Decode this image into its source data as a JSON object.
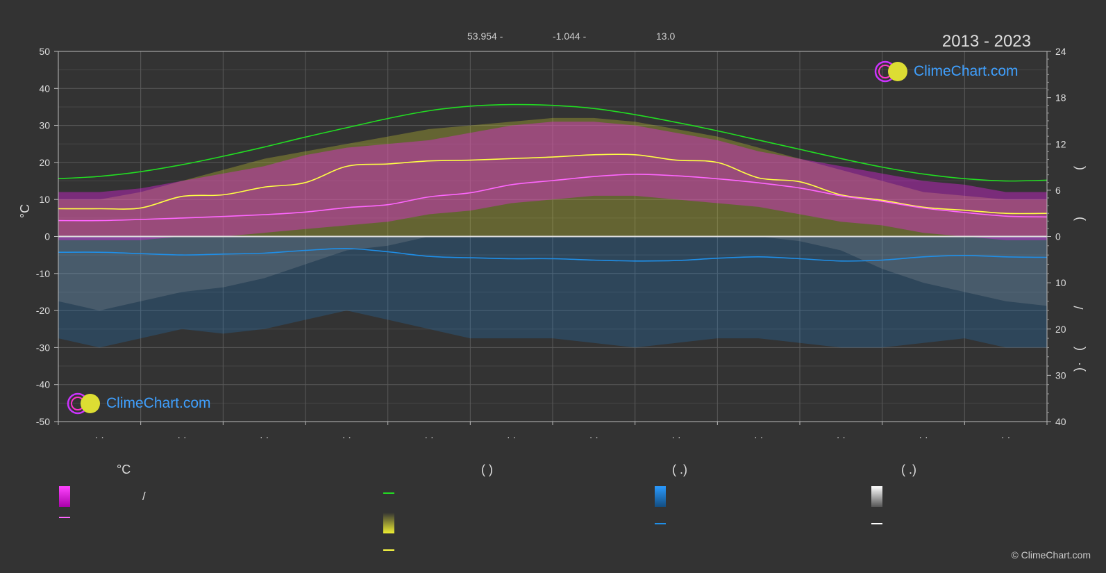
{
  "header": {
    "latitude": "53.954 -",
    "longitude": "-1.044 -",
    "elevation": "13.0",
    "period": "2013 - 2023"
  },
  "logo_text": "ClimeChart.com",
  "copyright": "© ClimeChart.com",
  "colors": {
    "background": "#333333",
    "daylight": "#22dd22",
    "sunshine": "#ffff44",
    "temp_max": "#ffff44",
    "temp_mean": "#ff66ff",
    "temp_band": "#ee22ee",
    "sunshine_band": "#cccc33",
    "rain": "#1f8fe8",
    "snow": "#ffffff"
  },
  "chart_data": {
    "type": "area",
    "left_axis": {
      "label": "°C",
      "range": [
        -50,
        50
      ],
      "ticks": [
        "50",
        "40",
        "30",
        "20",
        "10",
        "0",
        "-10",
        "-20",
        "-30",
        "-40",
        "-50"
      ]
    },
    "right_axis_top": {
      "range": [
        0,
        24
      ],
      "ticks": [
        "24",
        "18",
        "12",
        "6",
        "0"
      ],
      "label_glyphs": [
        "(",
        ")"
      ]
    },
    "right_axis_bottom": {
      "range": [
        0,
        40
      ],
      "ticks": [
        "10",
        "20",
        "30",
        "40"
      ],
      "label_glyphs": [
        "/",
        "(",
        "·",
        ")"
      ]
    },
    "x_tick_labels": [
      "· ·",
      "· ·",
      "· ·",
      "· ·",
      "· ·",
      "· ·",
      "· ·",
      "· ·",
      "· ·",
      "· ·",
      "· ·",
      "· ·"
    ],
    "x_range": [
      0,
      12
    ],
    "x": [
      0,
      0.5,
      1,
      1.5,
      2,
      2.5,
      3,
      3.5,
      4,
      4.5,
      5,
      5.5,
      6,
      6.5,
      7,
      7.5,
      8,
      8.5,
      9,
      9.5,
      10,
      10.5,
      11,
      11.5,
      12
    ],
    "series": [
      {
        "key": "daylight",
        "axis": "right_hours",
        "values": [
          7.5,
          7.8,
          8.4,
          9.3,
          10.4,
          11.6,
          12.9,
          14.1,
          15.3,
          16.3,
          16.9,
          17.1,
          17.0,
          16.6,
          15.8,
          14.8,
          13.7,
          12.5,
          11.3,
          10.1,
          9.0,
          8.1,
          7.5,
          7.2,
          7.3
        ]
      },
      {
        "key": "sunshine",
        "axis": "right_hours",
        "values": [
          3.6,
          3.6,
          3.7,
          5.2,
          5.4,
          6.4,
          7.0,
          9.1,
          9.4,
          9.8,
          9.9,
          10.1,
          10.3,
          10.6,
          10.6,
          9.9,
          9.6,
          7.6,
          7.1,
          5.4,
          4.7,
          3.8,
          3.4,
          3.0,
          3.0
        ]
      },
      {
        "key": "temp_mean",
        "axis": "left_temp",
        "values": [
          4.3,
          4.3,
          4.6,
          5.0,
          5.4,
          5.9,
          6.6,
          7.8,
          8.6,
          10.7,
          11.8,
          14.0,
          15.1,
          16.2,
          16.8,
          16.4,
          15.6,
          14.5,
          13.1,
          11.0,
          9.5,
          7.7,
          6.5,
          5.5,
          5.3
        ]
      },
      {
        "key": "rain",
        "axis": "right_mm",
        "values": [
          3.4,
          3.4,
          3.7,
          4.0,
          3.8,
          3.6,
          3.0,
          2.6,
          3.3,
          4.3,
          4.6,
          4.8,
          4.8,
          5.1,
          5.3,
          5.2,
          4.7,
          4.4,
          4.8,
          5.3,
          5.1,
          4.4,
          4.1,
          4.4,
          4.5
        ]
      }
    ],
    "bands": [
      {
        "key": "temp_band",
        "axis": "left_temp",
        "upper": [
          12,
          12,
          13,
          15,
          17,
          19,
          22,
          24,
          25,
          26,
          28,
          30,
          31,
          31,
          30,
          28,
          26,
          23,
          21,
          19,
          17,
          15,
          14,
          12,
          12
        ],
        "lower": [
          -1,
          -1,
          -1,
          0,
          0,
          1,
          2,
          3,
          4,
          6,
          7,
          9,
          10,
          11,
          11,
          10,
          9,
          8,
          6,
          4,
          3,
          1,
          0,
          -1,
          -1
        ]
      },
      {
        "key": "sunshine_band",
        "axis": "left_temp",
        "upper": [
          10,
          10,
          12,
          15,
          18,
          21,
          23,
          25,
          27,
          29,
          30,
          31,
          32,
          32,
          31,
          29,
          27,
          24,
          21,
          18,
          15,
          12,
          11,
          10,
          10
        ],
        "lower": [
          0,
          0,
          0,
          0,
          0,
          0,
          0,
          0,
          0,
          0,
          0,
          0,
          0,
          0,
          0,
          0,
          0,
          0,
          0,
          0,
          0,
          0,
          0,
          0,
          0
        ]
      },
      {
        "key": "rain_band",
        "axis": "right_mm",
        "upper": [
          22,
          24,
          22,
          20,
          21,
          20,
          18,
          16,
          18,
          20,
          22,
          22,
          22,
          23,
          24,
          23,
          22,
          22,
          23,
          24,
          24,
          23,
          22,
          24,
          24
        ],
        "lower": [
          0,
          0,
          0,
          0,
          0,
          0,
          0,
          0,
          0,
          0,
          0,
          0,
          0,
          0,
          0,
          0,
          0,
          0,
          0,
          0,
          0,
          0,
          0,
          0,
          0
        ]
      },
      {
        "key": "snow_band",
        "axis": "right_mm",
        "upper": [
          14,
          16,
          14,
          12,
          11,
          9,
          6,
          3,
          2,
          0,
          0,
          0,
          0,
          0,
          0,
          0,
          0,
          0,
          1,
          3,
          7,
          10,
          12,
          14,
          15
        ],
        "lower": [
          0,
          0,
          0,
          0,
          0,
          0,
          0,
          0,
          0,
          0,
          0,
          0,
          0,
          0,
          0,
          0,
          0,
          0,
          0,
          0,
          0,
          0,
          0,
          0,
          0
        ]
      }
    ]
  },
  "legend": {
    "groups": [
      {
        "heading": "°C",
        "items": [
          {
            "swatch": "grad-magenta",
            "label": "/"
          },
          {
            "swatch": "line-magenta",
            "label": ""
          }
        ]
      },
      {
        "heading": "(          )",
        "items": [
          {
            "swatch": "line-green",
            "label": ""
          },
          {
            "swatch": "grad-yellow",
            "label": ""
          },
          {
            "swatch": "line-yellow",
            "label": ""
          }
        ]
      },
      {
        "heading": "(   .)",
        "items": [
          {
            "swatch": "grad-blue",
            "label": ""
          },
          {
            "swatch": "line-blue",
            "label": ""
          }
        ]
      },
      {
        "heading": "(   .)",
        "items": [
          {
            "swatch": "grad-white",
            "label": ""
          },
          {
            "swatch": "line-white",
            "label": ""
          }
        ]
      }
    ]
  }
}
